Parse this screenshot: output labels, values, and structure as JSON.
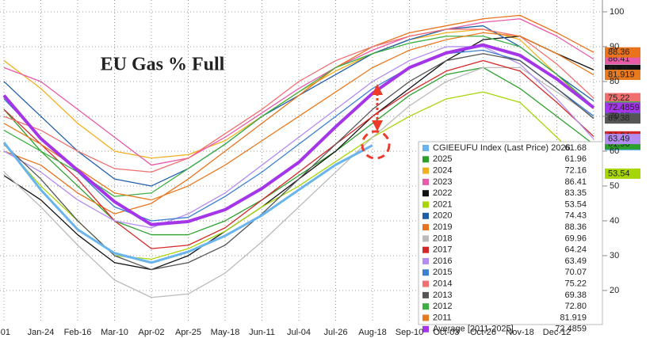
{
  "chart_data": {
    "type": "line",
    "title": "EU Gas % Full",
    "categories": [
      "-01",
      "Jan-24",
      "Feb-16",
      "Mar-10",
      "Apr-02",
      "Apr-25",
      "May-18",
      "Jun-11",
      "Jul-04",
      "Jul-26",
      "Aug-18",
      "Sep-10",
      "Oct-03",
      "Oct-26",
      "Nov-18",
      "Dec-12",
      null
    ],
    "ylim": [
      10.9,
      103.4
    ],
    "yticks": [
      20,
      30,
      40,
      50,
      60,
      70,
      80,
      90,
      100
    ],
    "grid": true,
    "series": [
      {
        "name": "CGIEEUFU Index (Last Price) 2026",
        "color": "#6ab4ee",
        "value_label": "61.68",
        "values": [
          62.5,
          48.9,
          37.5,
          30.7,
          28,
          31.1,
          35.7,
          41.6,
          48.9,
          56.1,
          61.68,
          null,
          null,
          null,
          null,
          null,
          null
        ]
      },
      {
        "name": "2025",
        "color": "#2ca02c",
        "value_label": "61.96",
        "values": [
          72,
          60,
          50,
          40,
          36,
          36,
          40,
          46,
          53,
          60,
          68,
          76,
          82,
          84,
          78,
          70,
          61.96
        ]
      },
      {
        "name": "2024",
        "color": "#f2b01e",
        "value_label": "72.16",
        "values": [
          86,
          78,
          68,
          60,
          58,
          59,
          63,
          70,
          77,
          83,
          88,
          92,
          94,
          95,
          92,
          82,
          72.16
        ]
      },
      {
        "name": "2023",
        "color": "#e75aa8",
        "value_label": "86.41",
        "values": [
          84,
          80,
          72,
          64,
          56,
          58,
          64,
          71,
          78,
          84,
          89,
          93,
          95,
          97,
          98,
          93,
          86.41
        ]
      },
      {
        "name": "2022",
        "color": "#111111",
        "value_label": "83.35",
        "values": [
          53,
          46,
          36,
          28,
          26,
          30,
          37,
          44,
          52,
          60,
          70,
          78,
          86,
          92,
          93,
          88,
          83.35
        ]
      },
      {
        "name": "2021",
        "color": "#a6d608",
        "value_label": "53.54",
        "values": [
          62,
          50,
          40,
          30,
          29,
          32,
          37,
          44,
          50,
          57,
          64,
          70,
          75,
          77,
          74,
          64,
          53.54
        ]
      },
      {
        "name": "2020",
        "color": "#1f5fa8",
        "value_label": "74.43",
        "values": [
          80,
          70,
          60,
          52,
          50,
          55,
          62,
          70,
          76,
          82,
          88,
          92,
          95,
          96,
          90,
          82,
          74.43
        ]
      },
      {
        "name": "2019",
        "color": "#e8731c",
        "value_label": "88.36",
        "values": [
          60,
          56,
          48,
          42,
          45,
          52,
          60,
          68,
          76,
          84,
          90,
          94,
          96,
          98,
          99,
          94,
          88.36
        ]
      },
      {
        "name": "2018",
        "color": "#bbbbbb",
        "value_label": "69.96",
        "values": [
          54,
          44,
          33,
          23,
          18,
          19,
          25,
          34,
          44,
          54,
          64,
          73,
          80,
          84,
          84,
          77,
          69.96
        ]
      },
      {
        "name": "2017",
        "color": "#d62728",
        "value_label": "64.24",
        "values": [
          72,
          62,
          52,
          40,
          32,
          33,
          38,
          46,
          54,
          62,
          70,
          77,
          83,
          86,
          83,
          74,
          64.24
        ]
      },
      {
        "name": "2016",
        "color": "#b28cf0",
        "value_label": "63.49",
        "values": [
          60,
          54,
          46,
          40,
          38,
          42,
          48,
          56,
          64,
          72,
          80,
          86,
          90,
          90,
          85,
          75,
          63.49
        ]
      },
      {
        "name": "2015",
        "color": "#3a7fd0",
        "value_label": "70.07",
        "values": [
          75,
          64,
          54,
          44,
          40,
          41,
          47,
          54,
          62,
          70,
          78,
          84,
          88,
          89,
          86,
          78,
          70.07
        ]
      },
      {
        "name": "2014",
        "color": "#f07070",
        "value_label": "75.22",
        "values": [
          70,
          66,
          60,
          55,
          54,
          58,
          65,
          72,
          80,
          86,
          90,
          93,
          95,
          95,
          93,
          85,
          75.22
        ]
      },
      {
        "name": "2013",
        "color": "#555555",
        "value_label": "69.38",
        "values": [
          62,
          52,
          40,
          30,
          26,
          28,
          33,
          42,
          52,
          62,
          72,
          80,
          86,
          88,
          86,
          78,
          69.38
        ]
      },
      {
        "name": "2012",
        "color": "#3cb043",
        "value_label": "72.80",
        "values": [
          66,
          60,
          54,
          47,
          48,
          55,
          62,
          70,
          77,
          84,
          88,
          91,
          93,
          93,
          90,
          82,
          72.8
        ]
      },
      {
        "name": "2011",
        "color": "#e87a20",
        "value_label": "81.919",
        "values": [
          68,
          62,
          55,
          48,
          46,
          50,
          56,
          63,
          70,
          77,
          84,
          89,
          92,
          94,
          93,
          88,
          81.919
        ]
      },
      {
        "name": "Average  [2011-2025]",
        "color": "#a435e8",
        "value_label": "72.4859",
        "values": [
          76,
          63.6,
          54.5,
          45.5,
          38.9,
          39.8,
          43.2,
          49.3,
          56.8,
          67,
          76.6,
          84,
          88.2,
          90.5,
          87.5,
          80.7,
          72.4859
        ]
      }
    ]
  }
}
